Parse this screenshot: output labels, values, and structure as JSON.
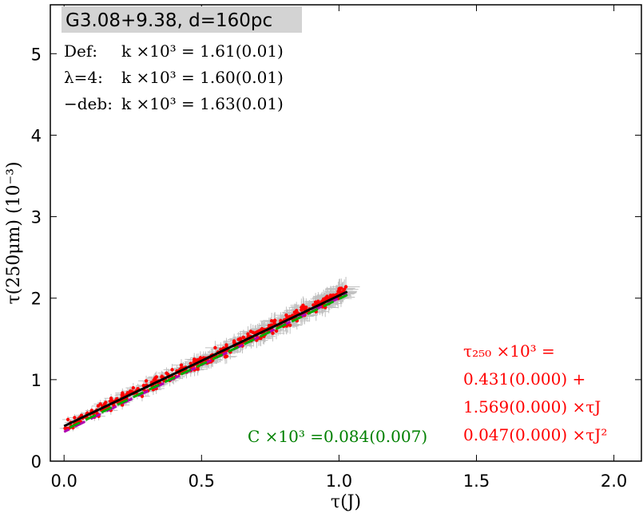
{
  "chart_data": {
    "type": "scatter",
    "title": "G3.08+9.38, d=160pc",
    "xlabel": "τ(J)",
    "ylabel": "τ(250μm) (10⁻³)",
    "xlim": [
      -0.05,
      2.1
    ],
    "ylim": [
      0,
      5.6
    ],
    "xticks": [
      "0.0",
      "0.5",
      "1.0",
      "1.5",
      "2.0"
    ],
    "xtick_values": [
      0.0,
      0.5,
      1.0,
      1.5,
      2.0
    ],
    "yticks": [
      "0",
      "1",
      "2",
      "3",
      "4",
      "5"
    ],
    "ytick_values": [
      0,
      1,
      2,
      3,
      4,
      5
    ],
    "grid": false,
    "scatter_points": {
      "color": "#ff0000",
      "errorbar_color": "#c0c0c0",
      "x_range": [
        0.0,
        1.03
      ],
      "count": 420,
      "model": "y = 0.431 + 1.569*x + 0.047*x^2"
    },
    "fit_lines": [
      {
        "style": "solid",
        "color": "#000000",
        "x": [
          0.0,
          1.03
        ],
        "y": [
          0.43,
          2.08
        ]
      },
      {
        "style": "dashed",
        "color": "#b000b0",
        "x": [
          0.0,
          1.03
        ],
        "y": [
          0.36,
          2.05
        ]
      },
      {
        "style": "dashed",
        "color": "#00aa00",
        "x": [
          0.0,
          1.03
        ],
        "y": [
          0.38,
          2.04
        ]
      }
    ],
    "legend_lines": [
      {
        "label": "Def:",
        "text": "k ×10³ = 1.61(0.01)"
      },
      {
        "label": "λ=4:",
        "text": "k ×10³ = 1.60(0.01)"
      },
      {
        "label": "−deb:",
        "text": "k ×10³ = 1.63(0.01)"
      }
    ],
    "annotation_fit": {
      "color": "#ff0000",
      "lines": [
        "τ₂₅₀ ×10³ =",
        "0.431(0.000) +",
        "1.569(0.000) ×τJ",
        "0.047(0.000) ×τJ²"
      ]
    },
    "annotation_c": {
      "color": "#008000",
      "text": "C ×10³ =0.084(0.007)"
    }
  }
}
